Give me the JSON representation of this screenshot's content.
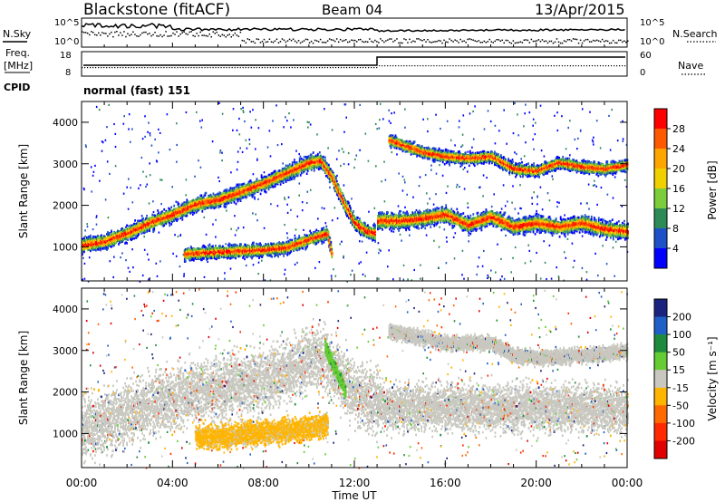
{
  "header": {
    "title": "Blackstone (fitACF)",
    "beam": "Beam 04",
    "date": "13/Apr/2015"
  },
  "summary": {
    "left_labels": [
      "N.Sky",
      "Freq.",
      "[MHz]",
      "CPID"
    ],
    "right_labels": [
      "N.Search",
      "Nave"
    ],
    "nsky_ticks": [
      "10^5",
      "10^0"
    ],
    "nsearch_ticks": [
      "10^5",
      "10^0"
    ],
    "freq_ticks": [
      "18",
      "8"
    ],
    "nave_ticks": [
      "60",
      "0"
    ],
    "cpid_text": "normal (fast) 151"
  },
  "power_colorbar": {
    "label": "Power [dB]",
    "ticks": [
      "28",
      "24",
      "20",
      "16",
      "12",
      "8",
      "4"
    ],
    "colors": [
      "#ff0000",
      "#ff5a00",
      "#ffa500",
      "#f0d000",
      "#7ccd3c",
      "#2e8b57",
      "#1e50c8",
      "#0000ff"
    ]
  },
  "velocity_colorbar": {
    "label": "Velocity [m s⁻¹]",
    "ticks": [
      "200",
      "100",
      "50",
      "15",
      "-15",
      "-50",
      "-100",
      "-200"
    ],
    "colors": [
      "#1a237e",
      "#1f5fc8",
      "#1e8b3c",
      "#66cc33",
      "#c8c8c0",
      "#ffb400",
      "#ff6a00",
      "#ff2a00",
      "#e00000"
    ]
  },
  "chart_data": [
    {
      "type": "heatmap",
      "title": "Power",
      "xlabel": "",
      "ylabel": "Slant Range [km]",
      "xlim": [
        0,
        24
      ],
      "ylim": [
        180,
        4500
      ],
      "x_ticks": [
        "00:00",
        "04:00",
        "08:00",
        "12:00",
        "16:00",
        "20:00",
        "00:00"
      ],
      "y_ticks": [
        "1000",
        "2000",
        "3000",
        "4000"
      ],
      "bands": [
        {
          "name": "main",
          "x": [
            0,
            1,
            2,
            3,
            4,
            5,
            6,
            7,
            8,
            9,
            10,
            10.5,
            11,
            11.5,
            12,
            12.5,
            12.9
          ],
          "y": [
            1050,
            1150,
            1350,
            1600,
            1800,
            2050,
            2150,
            2350,
            2550,
            2800,
            3050,
            3100,
            2700,
            2100,
            1600,
            1400,
            1350
          ],
          "width": 140
        },
        {
          "name": "main-late",
          "x": [
            13,
            14,
            15,
            16,
            17,
            18,
            19,
            20,
            21,
            22,
            23,
            24
          ],
          "y": [
            1650,
            1650,
            1700,
            1800,
            1550,
            1750,
            1500,
            1600,
            1500,
            1600,
            1450,
            1400
          ],
          "width": 150
        },
        {
          "name": "lower",
          "x": [
            4.5,
            6,
            8,
            9,
            10,
            10.8,
            11
          ],
          "y": [
            850,
            900,
            950,
            1000,
            1200,
            1350,
            800
          ],
          "width": 120
        },
        {
          "name": "upper-late",
          "x": [
            13.5,
            15,
            16,
            17,
            18,
            19,
            20,
            21,
            22,
            23,
            24
          ],
          "y": [
            3600,
            3300,
            3200,
            3150,
            3200,
            2900,
            2850,
            3050,
            2950,
            2900,
            3000
          ],
          "width": 110
        }
      ]
    },
    {
      "type": "heatmap",
      "title": "Velocity",
      "xlabel": "Time UT",
      "ylabel": "Slant Range [km]",
      "xlim": [
        0,
        24
      ],
      "ylim": [
        180,
        4500
      ],
      "x_ticks": [
        "00:00",
        "04:00",
        "08:00",
        "12:00",
        "16:00",
        "20:00",
        "00:00"
      ],
      "y_ticks": [
        "1000",
        "2000",
        "3000",
        "4000"
      ],
      "bands": [
        {
          "name": "grey-main",
          "x": [
            0,
            1,
            2,
            3,
            4,
            5,
            6,
            7,
            8,
            9,
            10,
            10.5,
            11,
            12,
            13
          ],
          "y": [
            1100,
            1300,
            1500,
            1700,
            1850,
            2050,
            2100,
            2200,
            2300,
            2500,
            2800,
            2900,
            2600,
            2000,
            1800
          ],
          "width": 600
        },
        {
          "name": "grey-late",
          "x": [
            13,
            16,
            20,
            24
          ],
          "y": [
            1650,
            1650,
            1650,
            1600
          ],
          "width": 450
        },
        {
          "name": "orange-lower",
          "x": [
            5,
            6,
            7,
            8,
            9,
            10,
            10.8
          ],
          "y": [
            950,
            950,
            1000,
            1050,
            1100,
            1150,
            1250
          ],
          "width": 230
        },
        {
          "name": "green-streak",
          "x": [
            10.7,
            11.2,
            11.6
          ],
          "y": [
            3100,
            2500,
            2000
          ],
          "width": 140
        },
        {
          "name": "grey-upper-late",
          "x": [
            13.5,
            16,
            18,
            19,
            20,
            22,
            24
          ],
          "y": [
            3500,
            3200,
            3200,
            2900,
            2850,
            2900,
            3000
          ],
          "width": 140
        }
      ]
    }
  ]
}
